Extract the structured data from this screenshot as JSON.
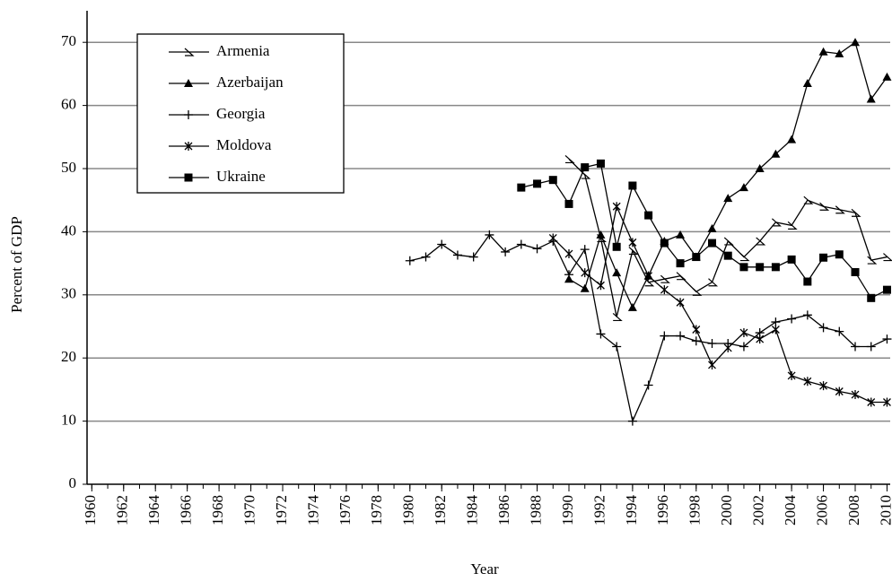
{
  "chart_data": {
    "type": "line",
    "x_label": "Year",
    "y_label": "Percent of GDP",
    "x": [
      1960,
      1961,
      1962,
      1963,
      1964,
      1965,
      1966,
      1967,
      1968,
      1969,
      1970,
      1971,
      1972,
      1973,
      1974,
      1975,
      1976,
      1977,
      1978,
      1979,
      1980,
      1981,
      1982,
      1983,
      1984,
      1985,
      1986,
      1987,
      1988,
      1989,
      1990,
      1991,
      1992,
      1993,
      1994,
      1995,
      1996,
      1997,
      1998,
      1999,
      2000,
      2001,
      2002,
      2003,
      2004,
      2005,
      2006,
      2007,
      2008,
      2009,
      2010
    ],
    "xlim": [
      1959.7,
      2010.2
    ],
    "xticks": [
      1960,
      1962,
      1964,
      1966,
      1968,
      1970,
      1972,
      1974,
      1976,
      1978,
      1980,
      1982,
      1984,
      1986,
      1988,
      1990,
      1992,
      1994,
      1996,
      1998,
      2000,
      2002,
      2004,
      2006,
      2008,
      2010
    ],
    "ylim": [
      0,
      75
    ],
    "yticks": [
      0,
      10,
      20,
      30,
      40,
      50,
      60,
      70
    ],
    "grid": true,
    "legend": "upper left",
    "series": [
      {
        "name": "Armenia",
        "color": "#000000",
        "marker": "half-triangle",
        "values": [
          null,
          null,
          null,
          null,
          null,
          null,
          null,
          null,
          null,
          null,
          null,
          null,
          null,
          null,
          null,
          null,
          null,
          null,
          null,
          null,
          null,
          null,
          null,
          null,
          null,
          null,
          null,
          null,
          null,
          null,
          51.5,
          49,
          39,
          26.5,
          37,
          32,
          32.5,
          33,
          30.5,
          32,
          38.5,
          36,
          38.5,
          41.5,
          41,
          45,
          44,
          43.5,
          43,
          35.5,
          36
        ]
      },
      {
        "name": "Azerbaijan",
        "color": "#000000",
        "marker": "triangle",
        "values": [
          null,
          null,
          null,
          null,
          null,
          null,
          null,
          null,
          null,
          null,
          null,
          null,
          null,
          null,
          null,
          null,
          null,
          null,
          null,
          null,
          null,
          null,
          null,
          null,
          null,
          null,
          null,
          null,
          null,
          null,
          32.5,
          31,
          39.5,
          33.5,
          28,
          33,
          38.5,
          39.5,
          36,
          40.5,
          45.3,
          47,
          50,
          52.3,
          54.6,
          63.5,
          68.5,
          68.2,
          70,
          61,
          64.5
        ]
      },
      {
        "name": "Georgia",
        "color": "#000000",
        "marker": "plus",
        "values": [
          null,
          null,
          null,
          null,
          null,
          null,
          null,
          null,
          null,
          null,
          null,
          null,
          null,
          null,
          null,
          null,
          null,
          null,
          null,
          null,
          35.4,
          36,
          38,
          36.3,
          36,
          39.5,
          36.8,
          38,
          37.3,
          38.5,
          33.2,
          37.2,
          23.8,
          21.8,
          10,
          15.7,
          23.5,
          23.5,
          22.7,
          22.3,
          22.3,
          21.8,
          24,
          25.7,
          26.2,
          26.8,
          24.8,
          24.2,
          21.8,
          21.8,
          23
        ]
      },
      {
        "name": "Moldova",
        "color": "#000000",
        "marker": "star",
        "values": [
          null,
          null,
          null,
          null,
          null,
          null,
          null,
          null,
          null,
          null,
          null,
          null,
          null,
          null,
          null,
          null,
          null,
          null,
          null,
          null,
          null,
          null,
          null,
          null,
          null,
          null,
          null,
          null,
          null,
          39,
          36.5,
          33.5,
          31.5,
          44,
          38.3,
          33,
          30.8,
          28.8,
          24.5,
          18.9,
          21.6,
          24,
          23,
          24.5,
          17.2,
          16.3,
          15.6,
          14.7,
          14.2,
          13,
          13
        ]
      },
      {
        "name": "Ukraine",
        "color": "#000000",
        "marker": "square",
        "values": [
          null,
          null,
          null,
          null,
          null,
          null,
          null,
          null,
          null,
          null,
          null,
          null,
          null,
          null,
          null,
          null,
          null,
          null,
          null,
          null,
          null,
          null,
          null,
          null,
          null,
          null,
          null,
          47,
          47.6,
          48.2,
          44.4,
          50.2,
          50.8,
          37.6,
          47.3,
          42.6,
          38.2,
          35,
          36,
          38.2,
          36.2,
          34.4,
          34.4,
          34.4,
          35.6,
          32.1,
          35.9,
          36.4,
          33.6,
          29.5,
          30.8
        ]
      }
    ]
  }
}
